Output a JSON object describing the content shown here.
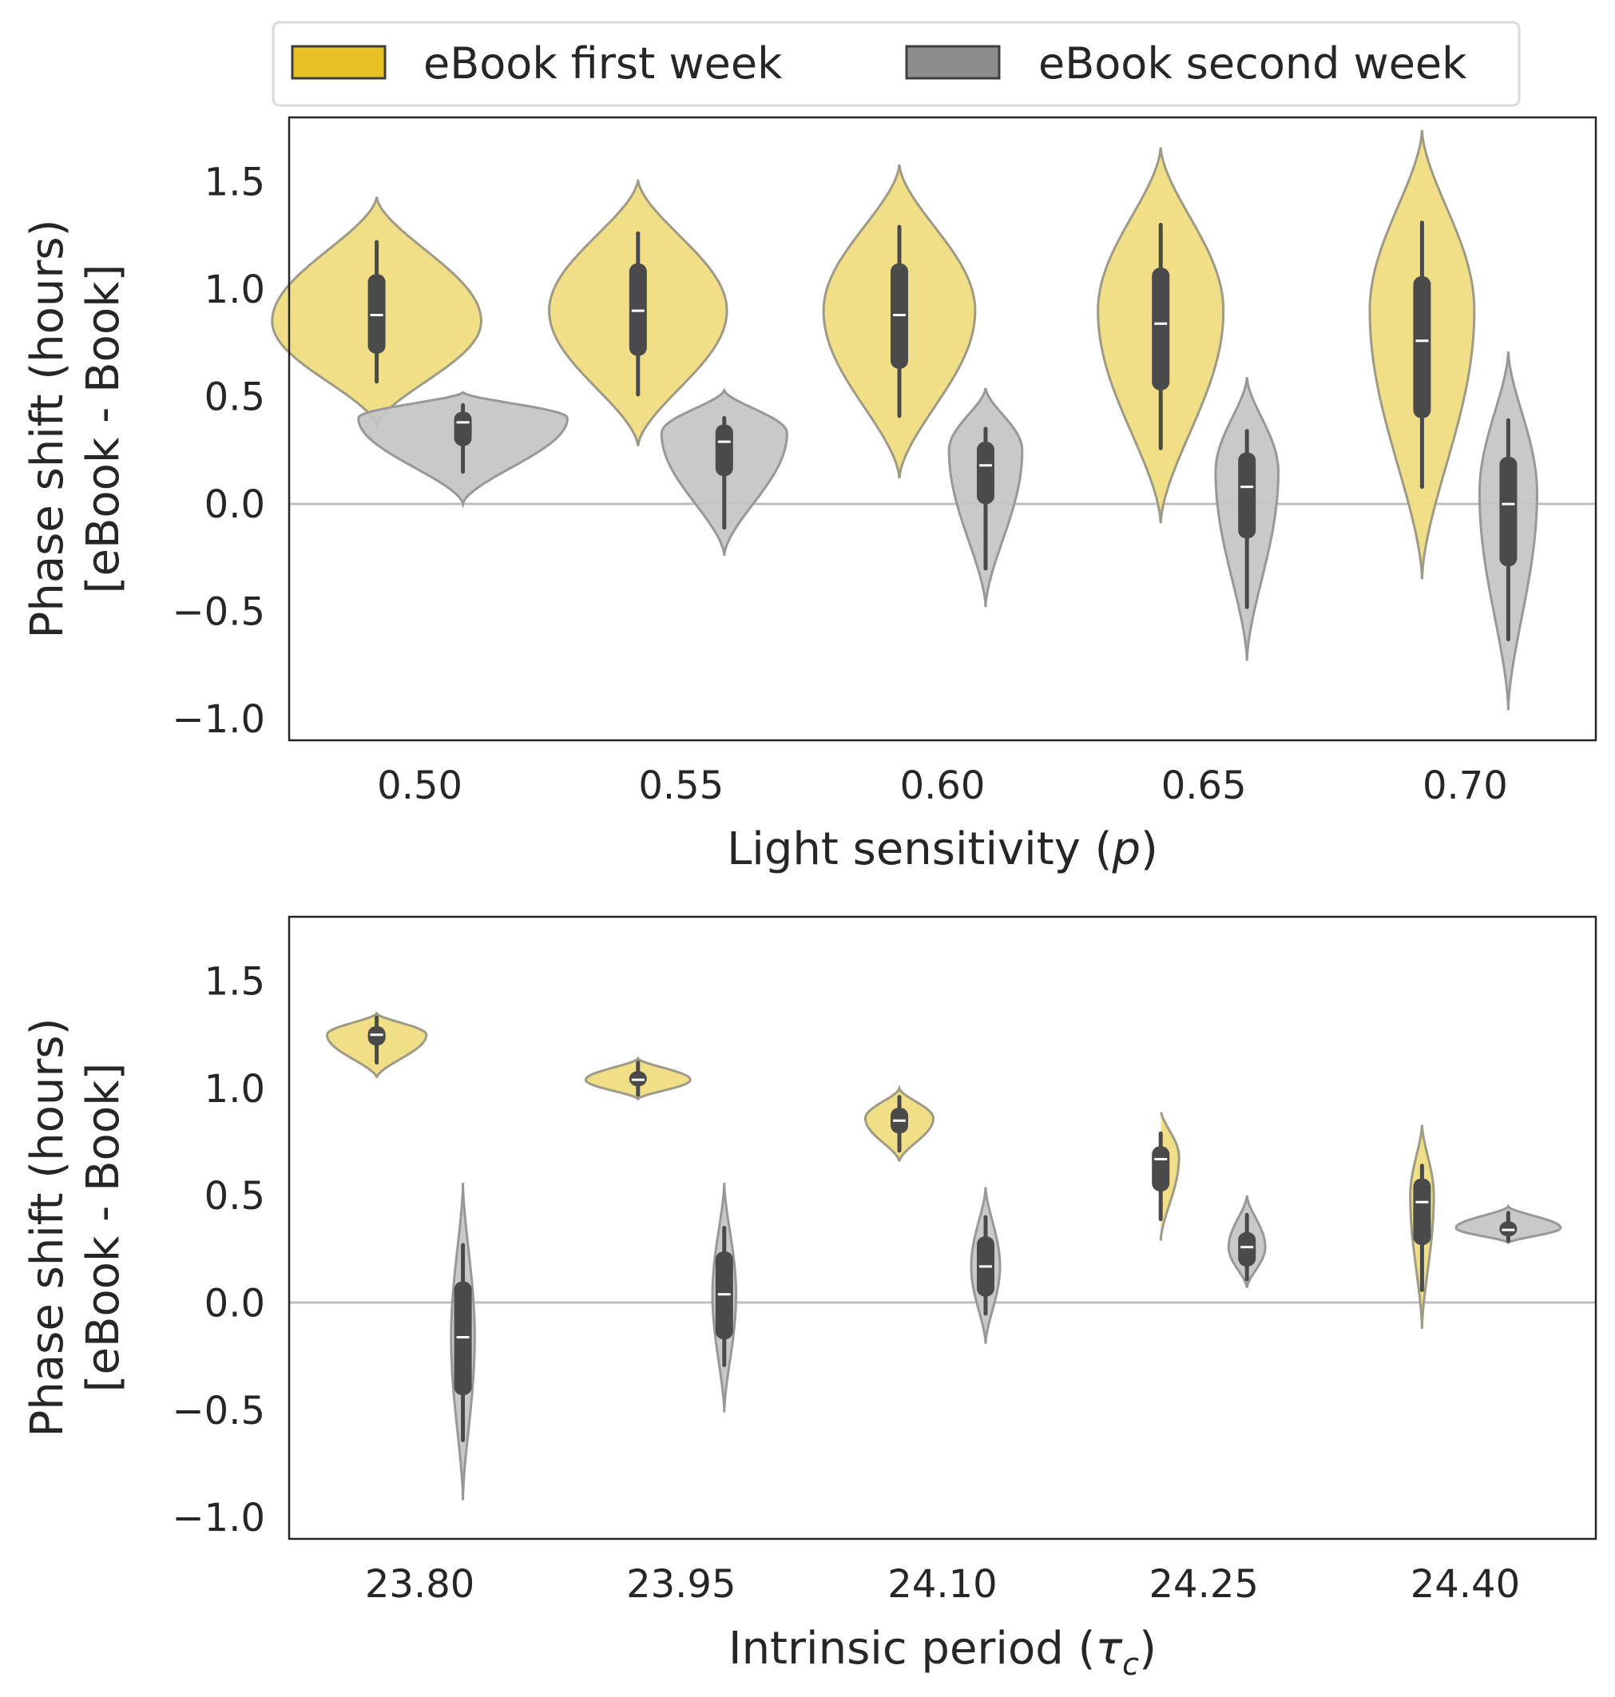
{
  "legend": {
    "items": [
      {
        "label": "eBook first week",
        "color": "#e6c323"
      },
      {
        "label": "eBook second week",
        "color": "#8c8c8c"
      }
    ]
  },
  "chart_data": [
    {
      "type": "violin",
      "xlabel_text": "Light sensitivity (",
      "xlabel_symbol": "p",
      "xlabel_close": ")",
      "ylabel_line1": "Phase shift (hours)",
      "ylabel_line2": "[eBook - Book]",
      "ylim": [
        -1.1,
        1.8
      ],
      "yticks": [
        -1.0,
        -0.5,
        0.0,
        0.5,
        1.0,
        1.5
      ],
      "ytick_labels": [
        "−1.0",
        "−0.5",
        "0.0",
        "0.5",
        "1.0",
        "1.5"
      ],
      "reference_line": 0.0,
      "categories": [
        "0.50",
        "0.55",
        "0.60",
        "0.65",
        "0.70"
      ],
      "series": [
        {
          "name": "eBook first week",
          "violins": [
            {
              "min": 0.36,
              "max": 1.43,
              "q1": 0.7,
              "median": 0.88,
              "q3": 1.07,
              "wlo": 0.57,
              "whi": 1.22,
              "mode": 0.85,
              "width": 0.8
            },
            {
              "min": 0.27,
              "max": 1.51,
              "q1": 0.69,
              "median": 0.9,
              "q3": 1.12,
              "wlo": 0.51,
              "whi": 1.26,
              "mode": 0.9,
              "width": 0.68
            },
            {
              "min": 0.12,
              "max": 1.58,
              "q1": 0.63,
              "median": 0.88,
              "q3": 1.12,
              "wlo": 0.41,
              "whi": 1.29,
              "mode": 0.9,
              "width": 0.58
            },
            {
              "min": -0.09,
              "max": 1.66,
              "q1": 0.53,
              "median": 0.84,
              "q3": 1.1,
              "wlo": 0.26,
              "whi": 1.3,
              "mode": 0.9,
              "width": 0.48
            },
            {
              "min": -0.35,
              "max": 1.74,
              "q1": 0.4,
              "median": 0.76,
              "q3": 1.06,
              "wlo": 0.08,
              "whi": 1.31,
              "mode": 0.9,
              "width": 0.4
            }
          ]
        },
        {
          "name": "eBook second week",
          "violins": [
            {
              "min": 0.0,
              "max": 0.52,
              "q1": 0.27,
              "median": 0.38,
              "q3": 0.43,
              "wlo": 0.15,
              "whi": 0.46,
              "mode": 0.4,
              "width": 0.8
            },
            {
              "min": -0.24,
              "max": 0.53,
              "q1": 0.13,
              "median": 0.29,
              "q3": 0.37,
              "wlo": -0.11,
              "whi": 0.4,
              "mode": 0.33,
              "width": 0.48
            },
            {
              "min": -0.48,
              "max": 0.54,
              "q1": 0.0,
              "median": 0.18,
              "q3": 0.29,
              "wlo": -0.3,
              "whi": 0.35,
              "mode": 0.25,
              "width": 0.28
            },
            {
              "min": -0.73,
              "max": 0.59,
              "q1": -0.16,
              "median": 0.08,
              "q3": 0.24,
              "wlo": -0.48,
              "whi": 0.34,
              "mode": 0.15,
              "width": 0.24
            },
            {
              "min": -0.96,
              "max": 0.71,
              "q1": -0.29,
              "median": 0.0,
              "q3": 0.22,
              "wlo": -0.63,
              "whi": 0.39,
              "mode": 0.05,
              "width": 0.22
            }
          ]
        }
      ]
    },
    {
      "type": "violin",
      "xlabel_text": "Intrinsic period (",
      "xlabel_symbol": "τ",
      "xlabel_sub": "c",
      "xlabel_close": ")",
      "ylabel_line1": "Phase shift (hours)",
      "ylabel_line2": "[eBook - Book]",
      "ylim": [
        -1.1,
        1.8
      ],
      "yticks": [
        -1.0,
        -0.5,
        0.0,
        0.5,
        1.0,
        1.5
      ],
      "ytick_labels": [
        "−1.0",
        "−0.5",
        "0.0",
        "0.5",
        "1.0",
        "1.5"
      ],
      "reference_line": 0.0,
      "categories": [
        "23.80",
        "23.95",
        "24.10",
        "24.25",
        "24.40"
      ],
      "series": [
        {
          "name": "eBook first week",
          "violins": [
            {
              "min": 1.05,
              "max": 1.35,
              "q1": 1.2,
              "median": 1.25,
              "q3": 1.29,
              "wlo": 1.12,
              "whi": 1.33,
              "mode": 1.25,
              "width": 0.38
            },
            {
              "min": 0.95,
              "max": 1.14,
              "q1": 1.01,
              "median": 1.04,
              "q3": 1.08,
              "wlo": 0.97,
              "whi": 1.12,
              "mode": 1.04,
              "width": 0.4
            },
            {
              "min": 0.66,
              "max": 1.0,
              "q1": 0.79,
              "median": 0.85,
              "q3": 0.91,
              "wlo": 0.71,
              "whi": 0.96,
              "mode": 0.86,
              "width": 0.26
            },
            {
              "min": 0.29,
              "max": 0.9,
              "q1": 0.52,
              "median": 0.67,
              "q3": 0.73,
              "wlo": 0.39,
              "whi": 0.79,
              "mode": 0.68,
              "width": 0.14
            },
            {
              "min": -0.12,
              "max": 0.83,
              "q1": 0.27,
              "median": 0.47,
              "q3": 0.58,
              "wlo": 0.06,
              "whi": 0.64,
              "mode": 0.5,
              "width": 0.09
            }
          ]
        },
        {
          "name": "eBook second week",
          "violins": [
            {
              "min": -0.92,
              "max": 0.56,
              "q1": -0.43,
              "median": -0.16,
              "q3": 0.1,
              "wlo": -0.64,
              "whi": 0.27,
              "mode": -0.16,
              "width": 0.09
            },
            {
              "min": -0.51,
              "max": 0.56,
              "q1": -0.17,
              "median": 0.04,
              "q3": 0.24,
              "wlo": -0.29,
              "whi": 0.35,
              "mode": 0.04,
              "width": 0.09
            },
            {
              "min": -0.19,
              "max": 0.54,
              "q1": 0.03,
              "median": 0.17,
              "q3": 0.31,
              "wlo": -0.05,
              "whi": 0.4,
              "mode": 0.17,
              "width": 0.11
            },
            {
              "min": 0.07,
              "max": 0.5,
              "q1": 0.17,
              "median": 0.26,
              "q3": 0.33,
              "wlo": 0.11,
              "whi": 0.41,
              "mode": 0.26,
              "width": 0.14
            },
            {
              "min": 0.28,
              "max": 0.45,
              "q1": 0.31,
              "median": 0.34,
              "q3": 0.38,
              "wlo": 0.29,
              "whi": 0.42,
              "mode": 0.35,
              "width": 0.4
            }
          ]
        }
      ]
    }
  ]
}
